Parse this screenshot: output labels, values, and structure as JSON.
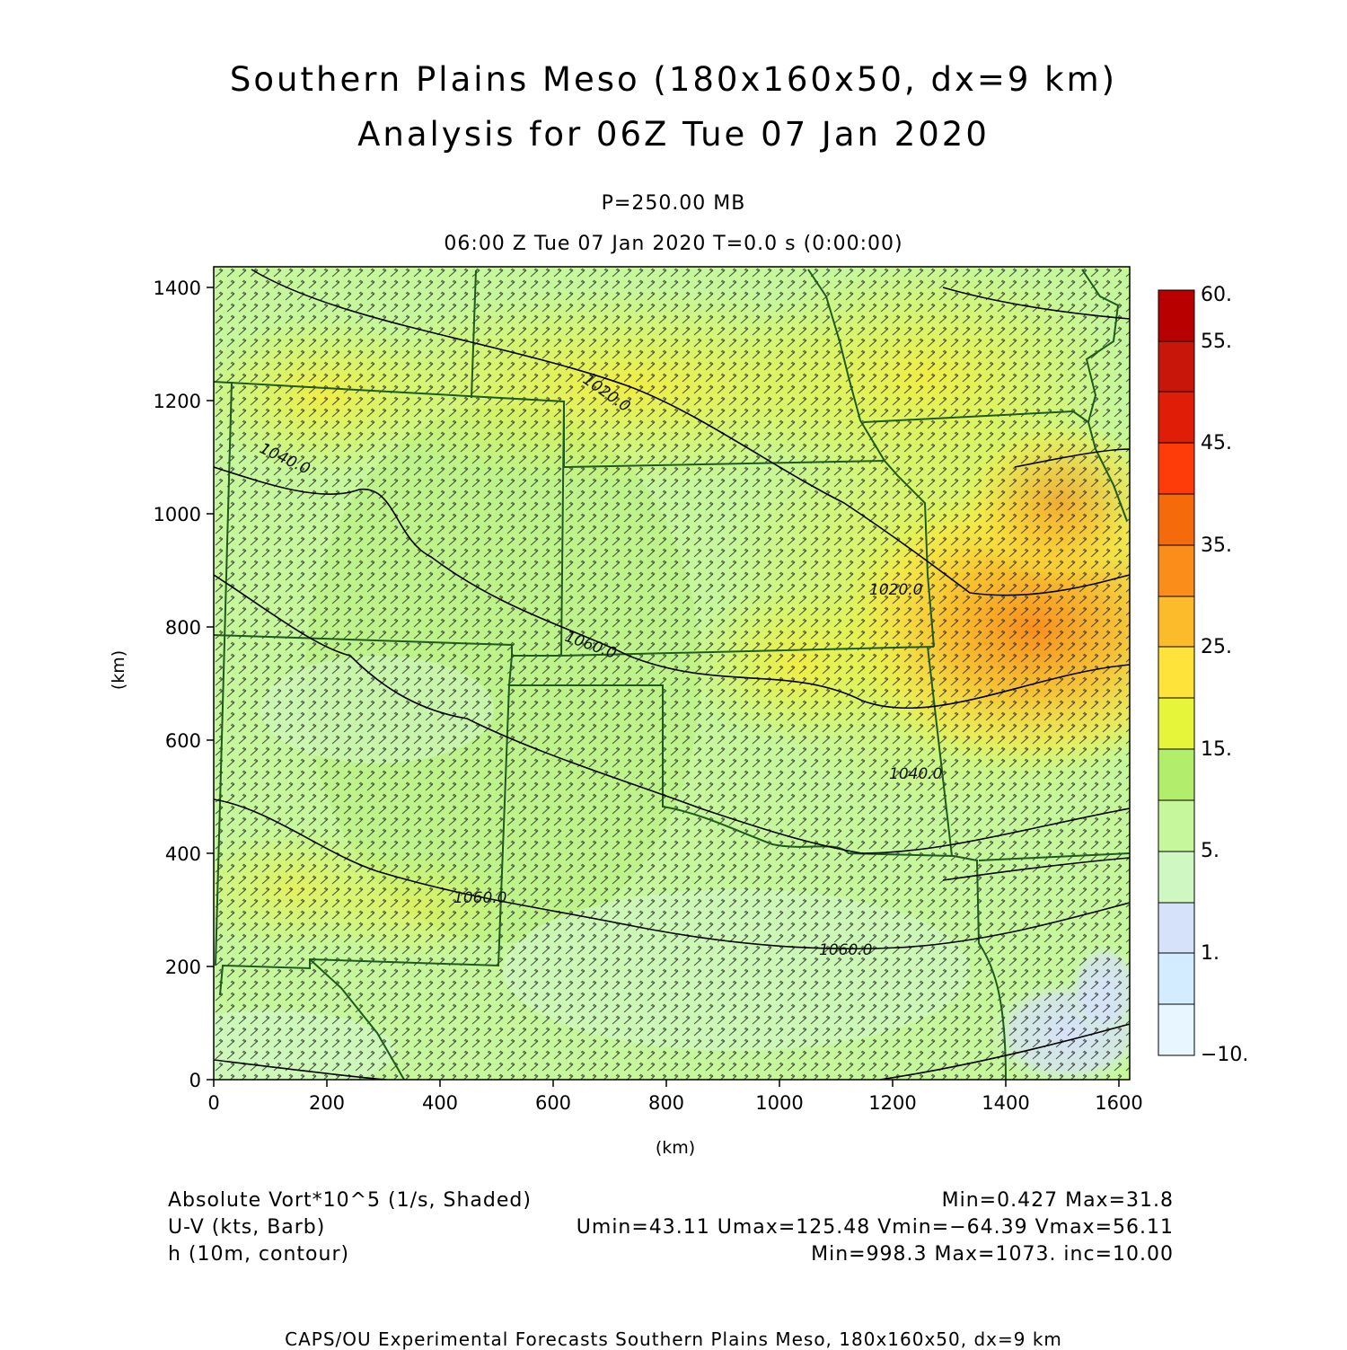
{
  "header": {
    "title_line1": "Southern Plains Meso (180x160x50, dx=9 km)",
    "title_line2": "Analysis for 06Z Tue 07 Jan 2020",
    "level": "P=250.00 MB",
    "time_line": "06:00 Z Tue 07 Jan 2020    T=0.0 s (0:00:00)"
  },
  "axes": {
    "x_unit": "(km)",
    "y_unit": "(km)",
    "x_ticks": [
      "0",
      "200",
      "400",
      "600",
      "800",
      "1000",
      "1200",
      "1400",
      "1600"
    ],
    "y_ticks": [
      "0",
      "200",
      "400",
      "600",
      "800",
      "1000",
      "1200",
      "1400"
    ],
    "x_range": [
      0,
      1620
    ],
    "y_range": [
      0,
      1440
    ]
  },
  "colorbar": {
    "labels": [
      "60.",
      "55.",
      "45.",
      "35.",
      "25.",
      "15.",
      "5.",
      "1.",
      "−10."
    ],
    "colors": [
      "#e8f7ff",
      "#d4ecff",
      "#d6e2fa",
      "#cef7c2",
      "#c6f79c",
      "#b2ee6c",
      "#e6f53a",
      "#fde33a",
      "#fcbb2a",
      "#fb8d1a",
      "#f56a0a",
      "#fe3c0a",
      "#e01e08",
      "#c8160a",
      "#b80000"
    ]
  },
  "contours": {
    "labels": [
      "1020.0",
      "1040.0",
      "1060.0",
      "1020.0",
      "1040.0",
      "1060.0",
      "1060.0"
    ]
  },
  "legend": {
    "field1_name": "Absolute Vort*10^5 (1/s, Shaded)",
    "field1_stats": "Min=0.427 Max=31.8",
    "field2_name": "U-V (kts, Barb)",
    "field2_stats": "Umin=43.11 Umax=125.48 Vmin=−64.39 Vmax=56.11",
    "field3_name": "h (10m, contour)",
    "field3_stats": "Min=998.3 Max=1073. inc=10.00"
  },
  "footer": {
    "credit": "CAPS/OU Experimental Forecasts   Southern Plains Meso, 180x160x50, dx=9 km"
  }
}
